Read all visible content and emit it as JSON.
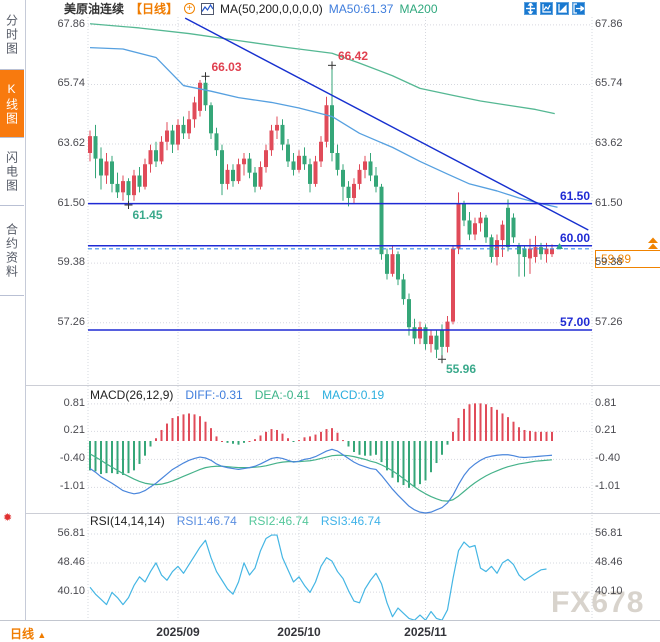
{
  "header": {
    "symbol": "美原油连续",
    "period_tag": "【日线】",
    "ma_settings": "MA(50,200,0,0,0,0)",
    "ma50_label": "MA50:61.37",
    "ma200_label": "MA200"
  },
  "icons": {
    "plus_icon": "+",
    "period_arrow": "▲",
    "burst_icon": "✹"
  },
  "sidebar": {
    "tabs": [
      {
        "label": "分时图",
        "active": false
      },
      {
        "label": "K线图",
        "active": true
      },
      {
        "label": "闪电图",
        "active": false
      },
      {
        "label": "合约资料",
        "active": false
      }
    ]
  },
  "toolbar": {
    "icons": [
      "crosshair-move",
      "axis-zoom",
      "axis-scale",
      "pan-right"
    ]
  },
  "bottom_bar": {
    "period_label": "日线"
  },
  "watermark": "FX678",
  "colors": {
    "bull": "#e04b59",
    "bear": "#35a678",
    "ma50": "#56a0e0",
    "ma200": "#55b893",
    "trendline": "#1730cf",
    "level": "#1f2ad4",
    "dashed_price": "#3f8fe8",
    "grid": "#d6d8df",
    "accent_orange": "#f08300",
    "diff": "#4a86dc",
    "dea": "#46b28a",
    "rsi": "#45b6e4",
    "annotation_red": "#e0404f",
    "annotation_green": "#3aa98b"
  },
  "chart_data": [
    {
      "type": "candlestick",
      "title": "美原油连续 日线",
      "ylim": [
        55.3,
        68.14
      ],
      "y_ticks": [
        {
          "label": "67.86",
          "value": 67.86
        },
        {
          "label": "65.74",
          "value": 65.74
        },
        {
          "label": "63.62",
          "value": 63.62
        },
        {
          "label": "61.50",
          "value": 61.5
        },
        {
          "label": "59.38",
          "value": 59.38
        },
        {
          "label": "57.26",
          "value": 57.26
        }
      ],
      "x_ticks": [
        {
          "label": "2025/09",
          "index": 16
        },
        {
          "label": "2025/10",
          "index": 38
        },
        {
          "label": "2025/11",
          "index": 61
        }
      ],
      "levels": [
        {
          "label": "61.50",
          "value": 61.5
        },
        {
          "label": "60.00",
          "value": 60.0
        },
        {
          "label": "57.00",
          "value": 57.0
        }
      ],
      "current_price": {
        "label": "59.89",
        "value": 59.89
      },
      "annotations": [
        {
          "text": "66.03",
          "index": 21,
          "price": 66.03,
          "color": "#e0404f",
          "placement": "above"
        },
        {
          "text": "66.42",
          "index": 44,
          "price": 66.42,
          "color": "#e0404f",
          "placement": "above"
        },
        {
          "text": "61.45",
          "index": 7,
          "price": 61.45,
          "color": "#3aa98b",
          "placement": "below"
        },
        {
          "text": "55.96",
          "index": 64,
          "price": 55.96,
          "color": "#3aa98b",
          "placement": "below"
        }
      ],
      "trendline": {
        "from": [
          17.3,
          68.1
        ],
        "to": [
          90.6,
          60.56
        ]
      },
      "ma50_points": [
        [
          0,
          67.05
        ],
        [
          6,
          67.0
        ],
        [
          12,
          66.7
        ],
        [
          17,
          65.7
        ],
        [
          22,
          65.5
        ],
        [
          27,
          65.27
        ],
        [
          33,
          65.1
        ],
        [
          38,
          64.9
        ],
        [
          44,
          64.6
        ],
        [
          49,
          64.0
        ],
        [
          55,
          63.5
        ],
        [
          60,
          63.0
        ],
        [
          65,
          62.55
        ],
        [
          69,
          62.2
        ],
        [
          74,
          61.95
        ],
        [
          78,
          61.7
        ],
        [
          82,
          61.5
        ],
        [
          85,
          61.37
        ]
      ],
      "ma200_points": [
        [
          0,
          67.9
        ],
        [
          9,
          67.75
        ],
        [
          18,
          67.55
        ],
        [
          27,
          67.3
        ],
        [
          36,
          67.05
        ],
        [
          44,
          66.85
        ],
        [
          49,
          66.5
        ],
        [
          55,
          66.05
        ],
        [
          60,
          65.6
        ],
        [
          66,
          65.35
        ],
        [
          71,
          65.15
        ],
        [
          76,
          65.0
        ],
        [
          81,
          64.85
        ],
        [
          84.5,
          64.7
        ]
      ],
      "candles": [
        [
          63.3,
          64.1,
          63.0,
          63.9
        ],
        [
          63.9,
          64.3,
          62.4,
          63.1
        ],
        [
          63.1,
          63.5,
          62.0,
          62.5
        ],
        [
          62.5,
          63.3,
          62.2,
          63.0
        ],
        [
          63.0,
          63.2,
          61.9,
          62.2
        ],
        [
          62.2,
          62.6,
          61.7,
          61.9
        ],
        [
          61.9,
          62.5,
          61.6,
          62.3
        ],
        [
          62.3,
          62.4,
          61.45,
          61.8
        ],
        [
          61.8,
          62.7,
          61.6,
          62.5
        ],
        [
          62.5,
          62.8,
          61.9,
          62.1
        ],
        [
          62.1,
          63.1,
          62.0,
          62.9
        ],
        [
          62.9,
          63.6,
          62.6,
          63.4
        ],
        [
          63.4,
          63.7,
          62.8,
          63.0
        ],
        [
          63.0,
          63.9,
          62.9,
          63.7
        ],
        [
          63.7,
          64.4,
          63.4,
          64.1
        ],
        [
          64.1,
          64.3,
          63.3,
          63.6
        ],
        [
          63.6,
          64.5,
          63.4,
          64.3
        ],
        [
          64.3,
          64.6,
          63.8,
          64.0
        ],
        [
          64.0,
          64.8,
          63.8,
          64.5
        ],
        [
          64.5,
          65.3,
          64.2,
          65.1
        ],
        [
          64.8,
          65.9,
          64.6,
          65.8
        ],
        [
          65.8,
          66.03,
          64.8,
          65.0
        ],
        [
          65.0,
          65.1,
          63.8,
          64.0
        ],
        [
          64.0,
          64.2,
          63.2,
          63.4
        ],
        [
          63.4,
          63.6,
          61.8,
          62.2
        ],
        [
          62.2,
          62.9,
          62.0,
          62.7
        ],
        [
          62.7,
          62.9,
          62.1,
          62.3
        ],
        [
          62.3,
          63.1,
          62.2,
          62.9
        ],
        [
          62.9,
          63.3,
          62.5,
          63.1
        ],
        [
          63.1,
          63.3,
          62.4,
          62.6
        ],
        [
          62.6,
          62.8,
          61.9,
          62.1
        ],
        [
          62.1,
          63.0,
          62.0,
          62.8
        ],
        [
          62.8,
          63.6,
          62.6,
          63.4
        ],
        [
          63.4,
          64.3,
          63.2,
          64.1
        ],
        [
          64.1,
          64.6,
          63.8,
          64.3
        ],
        [
          64.3,
          64.5,
          63.4,
          63.6
        ],
        [
          63.6,
          63.8,
          62.8,
          63.0
        ],
        [
          63.0,
          63.3,
          62.5,
          62.7
        ],
        [
          62.7,
          63.4,
          62.6,
          63.2
        ],
        [
          63.2,
          63.5,
          62.7,
          62.9
        ],
        [
          62.9,
          63.1,
          61.9,
          62.2
        ],
        [
          62.2,
          63.2,
          62.1,
          63.0
        ],
        [
          63.0,
          63.9,
          62.8,
          63.7
        ],
        [
          63.7,
          65.3,
          63.5,
          65.0
        ],
        [
          65.0,
          66.42,
          63.0,
          63.3
        ],
        [
          63.3,
          63.6,
          62.5,
          62.7
        ],
        [
          62.7,
          62.9,
          61.6,
          62.1
        ],
        [
          62.1,
          62.3,
          61.4,
          61.7
        ],
        [
          61.7,
          62.4,
          61.5,
          62.2
        ],
        [
          62.2,
          62.9,
          62.0,
          62.7
        ],
        [
          62.7,
          63.2,
          62.4,
          63.0
        ],
        [
          63.0,
          63.3,
          62.3,
          62.5
        ],
        [
          62.5,
          62.8,
          61.9,
          62.1
        ],
        [
          62.1,
          62.2,
          59.5,
          59.7
        ],
        [
          59.7,
          59.9,
          58.8,
          59.0
        ],
        [
          59.0,
          60.0,
          58.9,
          59.7
        ],
        [
          59.7,
          59.8,
          58.6,
          58.8
        ],
        [
          58.8,
          59.0,
          57.9,
          58.1
        ],
        [
          58.1,
          58.3,
          56.8,
          57.1
        ],
        [
          57.1,
          57.4,
          56.5,
          56.7
        ],
        [
          56.7,
          57.3,
          56.5,
          57.1
        ],
        [
          57.1,
          57.2,
          56.3,
          56.5
        ],
        [
          56.5,
          57.0,
          56.2,
          56.8
        ],
        [
          56.8,
          57.0,
          56.0,
          56.3
        ],
        [
          57.0,
          57.2,
          55.96,
          56.4
        ],
        [
          56.4,
          57.5,
          56.2,
          57.3
        ],
        [
          57.3,
          60.0,
          57.2,
          59.9
        ],
        [
          59.9,
          61.9,
          59.7,
          61.5
        ],
        [
          61.5,
          61.6,
          60.7,
          60.9
        ],
        [
          60.9,
          61.2,
          60.2,
          60.4
        ],
        [
          60.4,
          61.0,
          60.2,
          60.8
        ],
        [
          60.8,
          61.2,
          60.5,
          61.0
        ],
        [
          61.0,
          61.1,
          60.1,
          60.3
        ],
        [
          60.3,
          60.4,
          59.4,
          59.6
        ],
        [
          59.6,
          60.4,
          59.3,
          60.2
        ],
        [
          60.2,
          60.9,
          59.6,
          60.75
        ],
        [
          61.35,
          61.65,
          59.8,
          59.95
        ],
        [
          61.0,
          61.15,
          60.1,
          60.3
        ],
        [
          60.0,
          60.1,
          58.9,
          59.7
        ],
        [
          59.9,
          60.0,
          58.9,
          59.6
        ],
        [
          59.55,
          60.25,
          59.0,
          59.9
        ],
        [
          59.6,
          60.35,
          59.4,
          59.95
        ],
        [
          59.95,
          60.1,
          59.5,
          59.7
        ],
        [
          59.7,
          60.1,
          59.4,
          59.9
        ],
        [
          59.7,
          60.05,
          59.6,
          59.89
        ]
      ]
    },
    {
      "type": "macd",
      "labels": {
        "params": "MACD(26,12,9)",
        "diff": "DIFF:-0.31",
        "dea": "DEA:-0.41",
        "macd": "MACD:0.19"
      },
      "ylim": [
        -1.57,
        1.07
      ],
      "y_ticks": [
        {
          "label": "0.81",
          "value": 0.81
        },
        {
          "label": "0.21",
          "value": 0.21
        },
        {
          "label": "-0.40",
          "value": -0.4
        },
        {
          "label": "-1.01",
          "value": -1.01
        }
      ],
      "diff": [
        -0.6,
        -0.68,
        -0.78,
        -0.85,
        -0.92,
        -1.0,
        -1.08,
        -1.12,
        -1.15,
        -1.13,
        -1.08,
        -1.0,
        -0.92,
        -0.82,
        -0.72,
        -0.62,
        -0.55,
        -0.48,
        -0.42,
        -0.38,
        -0.35,
        -0.37,
        -0.42,
        -0.5,
        -0.55,
        -0.58,
        -0.6,
        -0.62,
        -0.6,
        -0.58,
        -0.55,
        -0.5,
        -0.44,
        -0.38,
        -0.36,
        -0.38,
        -0.42,
        -0.46,
        -0.44,
        -0.4,
        -0.38,
        -0.34,
        -0.28,
        -0.22,
        -0.18,
        -0.22,
        -0.3,
        -0.38,
        -0.46,
        -0.52,
        -0.56,
        -0.6,
        -0.62,
        -0.75,
        -0.9,
        -1.05,
        -1.18,
        -1.3,
        -1.42,
        -1.5,
        -1.55,
        -1.58,
        -1.55,
        -1.5,
        -1.45,
        -1.35,
        -1.18,
        -0.95,
        -0.75,
        -0.6,
        -0.5,
        -0.42,
        -0.36,
        -0.33,
        -0.31,
        -0.3,
        -0.3,
        -0.32,
        -0.35,
        -0.36,
        -0.35,
        -0.34,
        -0.33,
        -0.32,
        -0.31
      ],
      "dea": [
        -0.28,
        -0.35,
        -0.42,
        -0.5,
        -0.57,
        -0.64,
        -0.71,
        -0.77,
        -0.83,
        -0.88,
        -0.92,
        -0.94,
        -0.95,
        -0.94,
        -0.91,
        -0.87,
        -0.82,
        -0.77,
        -0.72,
        -0.67,
        -0.62,
        -0.58,
        -0.56,
        -0.55,
        -0.55,
        -0.56,
        -0.57,
        -0.58,
        -0.58,
        -0.58,
        -0.57,
        -0.56,
        -0.54,
        -0.51,
        -0.48,
        -0.46,
        -0.45,
        -0.45,
        -0.45,
        -0.44,
        -0.43,
        -0.41,
        -0.38,
        -0.35,
        -0.32,
        -0.31,
        -0.31,
        -0.32,
        -0.34,
        -0.37,
        -0.4,
        -0.44,
        -0.47,
        -0.52,
        -0.58,
        -0.65,
        -0.73,
        -0.82,
        -0.91,
        -1.0,
        -1.08,
        -1.15,
        -1.21,
        -1.26,
        -1.3,
        -1.31,
        -1.28,
        -1.2,
        -1.1,
        -1.0,
        -0.91,
        -0.83,
        -0.76,
        -0.7,
        -0.65,
        -0.6,
        -0.56,
        -0.53,
        -0.5,
        -0.48,
        -0.46,
        -0.44,
        -0.43,
        -0.42,
        -0.41
      ]
    },
    {
      "type": "line",
      "labels": {
        "params": "RSI(14,14,14)",
        "rsi1": "RSI1:46.74",
        "rsi2": "RSI2:46.74",
        "rsi3": "RSI3:46.74"
      },
      "ylim": [
        32.0,
        61.1
      ],
      "y_ticks": [
        {
          "label": "56.81",
          "value": 56.81
        },
        {
          "label": "48.46",
          "value": 48.46
        },
        {
          "label": "40.10",
          "value": 40.1
        }
      ],
      "values": [
        41.5,
        39.5,
        38,
        36.5,
        40,
        38.5,
        36.5,
        38.5,
        42,
        44.5,
        43,
        46,
        48.5,
        45,
        43.5,
        46,
        47.5,
        45.5,
        48,
        50.5,
        53,
        55,
        50,
        46,
        43.5,
        41,
        39.5,
        43,
        48.5,
        45,
        47,
        52,
        55.5,
        56.5,
        56.5,
        50,
        46.5,
        43,
        44.5,
        42,
        40,
        43,
        47.5,
        50,
        49,
        46,
        44,
        40.5,
        37.5,
        37,
        41,
        43.5,
        45.5,
        42.5,
        37,
        33,
        35.5,
        34,
        32.5,
        32,
        33.5,
        32,
        34.5,
        32.5,
        32,
        35,
        44,
        52,
        54.5,
        53,
        53.5,
        47,
        46,
        47.5,
        45.5,
        48.5,
        49.5,
        48,
        45,
        43.5,
        44.5,
        45.5,
        46.5,
        46.74
      ]
    }
  ]
}
